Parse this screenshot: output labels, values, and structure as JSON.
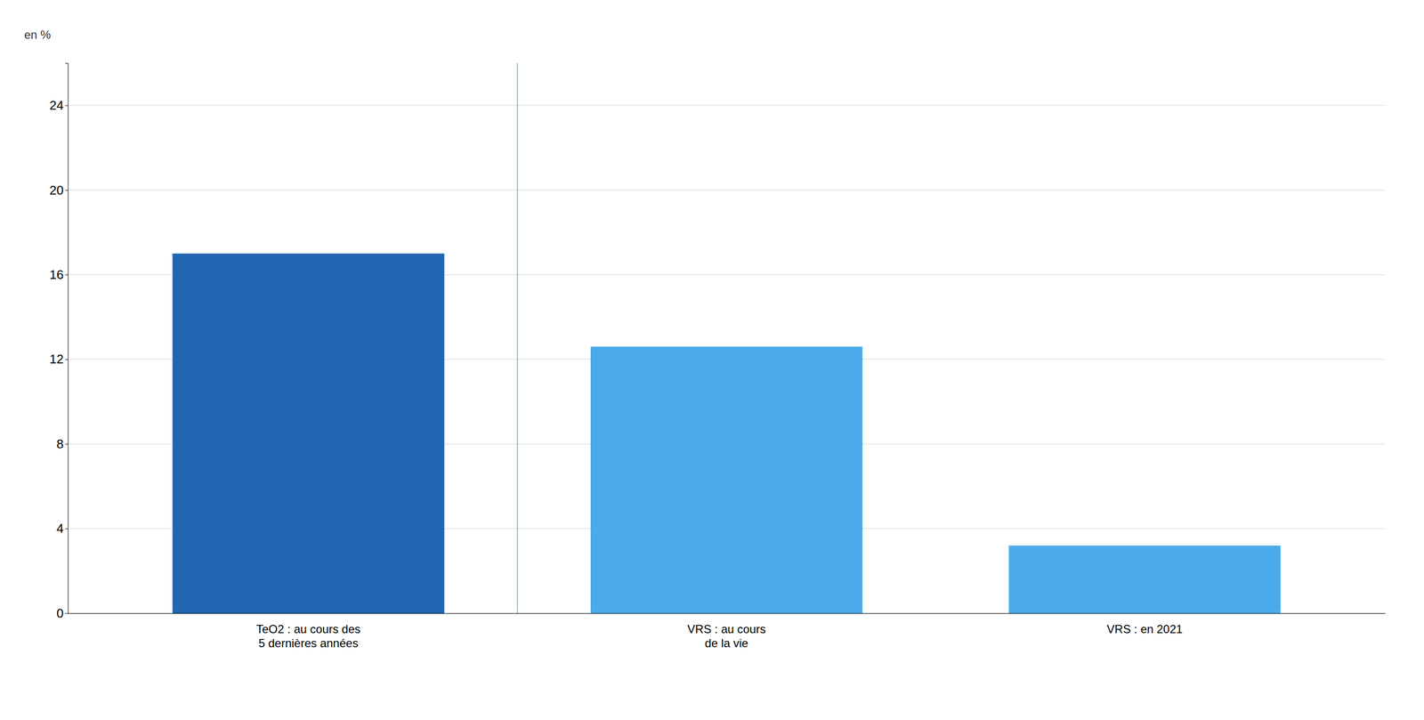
{
  "chart_data": {
    "type": "bar",
    "ylabel": "en %",
    "categories": [
      "TeO2 : au cours des\n5 dernières années",
      "VRS : au cours\nde la vie",
      "VRS : en 2021"
    ],
    "values": [
      17.0,
      12.6,
      3.2
    ],
    "colors": [
      "#2166B0",
      "#4BAAEA",
      "#4BAAEA"
    ],
    "ylim": [
      0,
      26
    ],
    "yticks": [
      0,
      4,
      8,
      12,
      16,
      20,
      24
    ],
    "grid": true
  }
}
